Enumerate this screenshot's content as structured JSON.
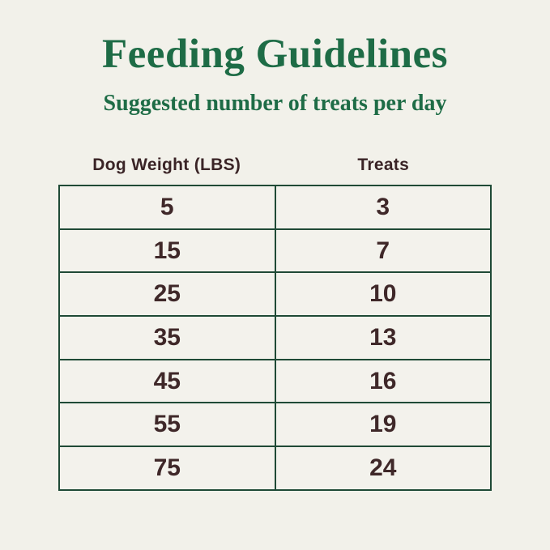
{
  "page": {
    "title": "Feeding Guidelines",
    "subtitle": "Suggested number of treats per day"
  },
  "colors": {
    "background": "#f2f1ea",
    "heading_green": "#1e6c46",
    "table_border_green": "#1f4a36",
    "text_brown": "#3f2829"
  },
  "table": {
    "columns": [
      "Dog Weight (LBS)",
      "Treats"
    ],
    "rows": [
      {
        "weight": "5",
        "treats": "3"
      },
      {
        "weight": "15",
        "treats": "7"
      },
      {
        "weight": "25",
        "treats": "10"
      },
      {
        "weight": "35",
        "treats": "13"
      },
      {
        "weight": "45",
        "treats": "16"
      },
      {
        "weight": "55",
        "treats": "19"
      },
      {
        "weight": "75",
        "treats": "24"
      }
    ]
  },
  "chart_data": {
    "type": "table",
    "title": "Feeding Guidelines",
    "subtitle": "Suggested number of treats per day",
    "columns": [
      "Dog Weight (LBS)",
      "Treats"
    ],
    "rows": [
      [
        5,
        3
      ],
      [
        15,
        7
      ],
      [
        25,
        10
      ],
      [
        35,
        13
      ],
      [
        45,
        16
      ],
      [
        55,
        19
      ],
      [
        75,
        24
      ]
    ],
    "layout": {
      "grid": "full-borders",
      "header_position": "above-table",
      "alignment": "center"
    }
  }
}
